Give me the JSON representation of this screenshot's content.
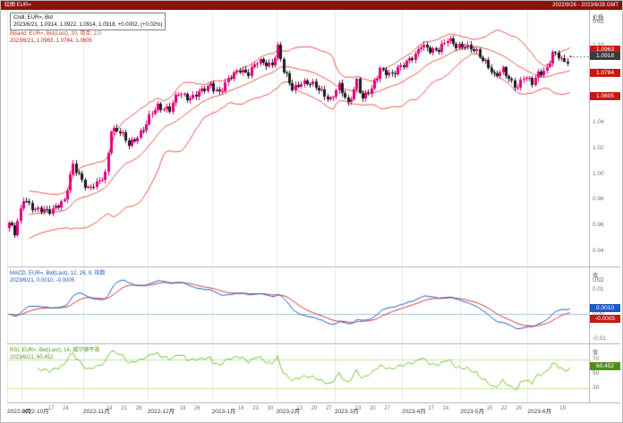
{
  "titlebar": {
    "left": "绘图 EUR=",
    "right": "2022/9/26 - 2023/6/28 GMT"
  },
  "colors": {
    "up": "#e2007a",
    "down": "#1c1c1c",
    "band": "#e0584a",
    "macd_line": "#1f58c4",
    "macd_signal": "#d03a30",
    "rsi": "#76c332",
    "rsi_guide": "#c2e6a2",
    "zero_line": "#9ec7e4",
    "titlebar_bg": "#8c120c"
  },
  "main_legend": {
    "line1": "Cndl, EUR=, Bid",
    "line2": "2023/6/21, 1.0914, 1.0922, 1.0914, 1.0918, +0.0002, (+0.02%)",
    "line3": "BBand, EUR=, Bid(Last), 20, 简单, 2.0",
    "line4": "2023/6/21, 1.0963, 1.0784, 1.0605"
  },
  "macd_legend": {
    "line1": "MACD, EUR=, Bid(Last), 12, 26, 9, 指数",
    "line2": "2023/6/21, 0.0010, -0.0005"
  },
  "rsi_legend": {
    "line1": "RSI, EUR=, Bid(Last), 14, 威尔德平滑",
    "line2": "2023/6/21, 60.452"
  },
  "axes": {
    "price": {
      "unit_top": "价格",
      "unit_bottom": "USD",
      "min": 0.928,
      "max": 1.128,
      "ticks": [
        {
          "value": 1.12,
          "label": "1.12"
        },
        {
          "value": 1.1,
          "label": "1.10"
        },
        {
          "value": 1.08,
          "label": "1.08"
        },
        {
          "value": 1.06,
          "label": "1.06"
        },
        {
          "value": 1.04,
          "label": "1.04"
        },
        {
          "value": 1.02,
          "label": "1.02"
        },
        {
          "value": 1.0,
          "label": "1.00"
        },
        {
          "value": 0.98,
          "label": "0.98"
        },
        {
          "value": 0.96,
          "label": "0.96"
        },
        {
          "value": 0.94,
          "label": "0.94"
        }
      ]
    },
    "macd": {
      "unit_top": "值",
      "unit_bottom": "USD",
      "min": -0.012,
      "max": 0.019,
      "ticks": [
        {
          "value": 0.01,
          "label": "0.01"
        },
        {
          "value": 0.0,
          "label": "0.00"
        },
        {
          "value": -0.01,
          "label": "-0.01"
        }
      ]
    },
    "rsi": {
      "unit_top": "值",
      "unit_bottom": "",
      "min": 10,
      "max": 90,
      "ticks": [
        {
          "value": 70,
          "label": "70"
        },
        {
          "value": 50,
          "label": "50"
        },
        {
          "value": 30,
          "label": "30"
        }
      ],
      "guides": [
        30,
        70
      ]
    }
  },
  "badges": {
    "bb_upper": {
      "label": "1.0963",
      "value": 1.0963
    },
    "price": {
      "label": "1.0918",
      "value": 1.0918
    },
    "bb_mid": {
      "label": "1.0784",
      "value": 1.0784
    },
    "bb_lower": {
      "label": "1.0605",
      "value": 1.0605
    },
    "macd": {
      "label": "0.0010",
      "value": 0.001
    },
    "macd_signal": {
      "label": "-0.0005",
      "value": -0.0005
    },
    "rsi": {
      "label": "60.452",
      "value": 60.452
    }
  },
  "x_axis": {
    "day_step": 5,
    "day_labels": [
      "26",
      "03",
      "10",
      "17",
      "24",
      "31",
      "07",
      "14",
      "21",
      "28",
      "05",
      "12",
      "19",
      "26",
      "02",
      "09",
      "16",
      "23",
      "30",
      "06",
      "13",
      "20",
      "27",
      "06",
      "13",
      "20",
      "27",
      "03",
      "10",
      "17",
      "24",
      "01",
      "08",
      "15",
      "22",
      "29",
      "05",
      "12",
      "19"
    ],
    "month_labels": [
      {
        "label": "2022-9月",
        "idx": 0
      },
      {
        "label": "2022-10月",
        "idx": 5
      },
      {
        "label": "2022-11月",
        "idx": 26
      },
      {
        "label": "2022-12月",
        "idx": 48
      },
      {
        "label": "2023-1月",
        "idx": 70
      },
      {
        "label": "2023-2月",
        "idx": 92
      },
      {
        "label": "2023-3月",
        "idx": 112
      },
      {
        "label": "2023-4月",
        "idx": 135
      },
      {
        "label": "2023-5月",
        "idx": 155
      },
      {
        "label": "2023-6月",
        "idx": 178
      }
    ]
  },
  "chart_data": {
    "type": "candlestick",
    "symbol": "EUR=",
    "field": "Bid",
    "interval": "daily",
    "start_date": "2022-09-26",
    "end_date": "2023-06-21",
    "n": 193,
    "last_candle": {
      "date": "2023/6/21",
      "open": 1.0914,
      "high": 1.0922,
      "low": 1.0914,
      "close": 1.0918,
      "change": 0.0002,
      "change_pct": "+0.02%"
    },
    "close_anchors": [
      [
        0,
        0.961
      ],
      [
        2,
        0.954
      ],
      [
        5,
        0.982
      ],
      [
        9,
        0.971
      ],
      [
        14,
        0.9725
      ],
      [
        19,
        0.978
      ],
      [
        22,
        1.008
      ],
      [
        25,
        0.996
      ],
      [
        27,
        0.9875
      ],
      [
        30,
        0.992
      ],
      [
        33,
        1.001
      ],
      [
        35,
        1.035
      ],
      [
        38,
        1.032
      ],
      [
        41,
        1.024
      ],
      [
        46,
        1.034
      ],
      [
        49,
        1.048
      ],
      [
        51,
        1.054
      ],
      [
        55,
        1.05
      ],
      [
        58,
        1.063
      ],
      [
        62,
        1.06
      ],
      [
        66,
        1.064
      ],
      [
        69,
        1.07
      ],
      [
        72,
        1.064
      ],
      [
        75,
        1.073
      ],
      [
        79,
        1.082
      ],
      [
        82,
        1.079
      ],
      [
        85,
        1.087
      ],
      [
        90,
        1.086
      ],
      [
        92,
        1.099
      ],
      [
        94,
        1.0795
      ],
      [
        97,
        1.067
      ],
      [
        100,
        1.072
      ],
      [
        104,
        1.069
      ],
      [
        107,
        1.065
      ],
      [
        110,
        1.058
      ],
      [
        113,
        1.068
      ],
      [
        116,
        1.055
      ],
      [
        119,
        1.073
      ],
      [
        121,
        1.0577
      ],
      [
        124,
        1.066
      ],
      [
        127,
        1.083
      ],
      [
        131,
        1.076
      ],
      [
        134,
        1.084
      ],
      [
        137,
        1.0905
      ],
      [
        139,
        1.092
      ],
      [
        141,
        1.0993
      ],
      [
        144,
        1.097
      ],
      [
        147,
        1.098
      ],
      [
        150,
        1.104
      ],
      [
        153,
        1.1
      ],
      [
        156,
        1.101
      ],
      [
        159,
        1.096
      ],
      [
        161,
        1.0915
      ],
      [
        164,
        1.085
      ],
      [
        166,
        1.077
      ],
      [
        169,
        1.08
      ],
      [
        172,
        1.071
      ],
      [
        174,
        1.0687
      ],
      [
        176,
        1.0762
      ],
      [
        179,
        1.07
      ],
      [
        181,
        1.078
      ],
      [
        184,
        1.083
      ],
      [
        186,
        1.094
      ],
      [
        188,
        1.091
      ],
      [
        190,
        1.0865
      ],
      [
        192,
        1.0918
      ]
    ],
    "indicators": {
      "bollinger": {
        "period": 20,
        "stdev": 2,
        "ma_type": "简单",
        "current": {
          "upper": 1.0963,
          "middle": 1.0784,
          "lower": 1.0605
        }
      },
      "macd": {
        "fast": 12,
        "slow": 26,
        "signal": 9,
        "ma_type": "指数",
        "current": {
          "macd": 0.001,
          "signal": -0.0005
        }
      },
      "rsi": {
        "period": 14,
        "smoothing": "威尔德平滑",
        "current": 60.452
      }
    }
  }
}
